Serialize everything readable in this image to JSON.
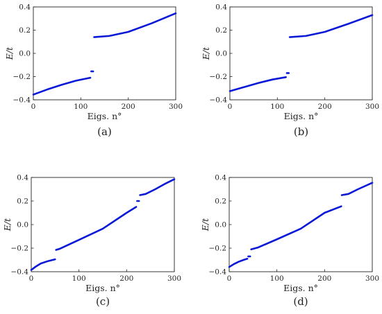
{
  "colors": {
    "series": "#0a18d8",
    "axis": "#222222"
  },
  "chart_data": [
    {
      "type": "scatter",
      "panel_label": "(a)",
      "xlabel": "Eigs. n°",
      "ylabel": "E/t",
      "xlim": [
        0,
        300
      ],
      "ylim": [
        -0.4,
        0.4
      ],
      "xticks": [
        "0",
        "100",
        "200",
        "300"
      ],
      "yticks": [
        "−0.4",
        "−0.2",
        "0.0",
        "0.2",
        "0.4"
      ],
      "series": [
        {
          "segments": [
            {
              "x": [
                0,
                30,
                60,
                90,
                120
              ],
              "y": [
                -0.355,
                -0.31,
                -0.27,
                -0.235,
                -0.21
              ]
            },
            {
              "x": [
                122,
                126
              ],
              "y": [
                -0.155,
                -0.155
              ]
            },
            {
              "x": [
                128,
                160,
                200,
                250,
                300
              ],
              "y": [
                0.14,
                0.15,
                0.185,
                0.26,
                0.345
              ]
            }
          ]
        }
      ]
    },
    {
      "type": "scatter",
      "panel_label": "(b)",
      "xlabel": "Eigs. n°",
      "ylabel": "E/t",
      "xlim": [
        0,
        300
      ],
      "ylim": [
        -0.4,
        0.4
      ],
      "xticks": [
        "0",
        "100",
        "200",
        "300"
      ],
      "yticks": [
        "−0.4",
        "−0.2",
        "0.0",
        "0.2",
        "0.4"
      ],
      "series": [
        {
          "segments": [
            {
              "x": [
                0,
                30,
                60,
                90,
                118
              ],
              "y": [
                -0.325,
                -0.29,
                -0.255,
                -0.225,
                -0.205
              ]
            },
            {
              "x": [
                120,
                124
              ],
              "y": [
                -0.17,
                -0.17
              ]
            },
            {
              "x": [
                126,
                160,
                200,
                250,
                300
              ],
              "y": [
                0.14,
                0.15,
                0.185,
                0.255,
                0.33
              ]
            }
          ]
        }
      ]
    },
    {
      "type": "scatter",
      "panel_label": "(c)",
      "xlabel": "Eigs. n°",
      "ylabel": "E/t",
      "xlim": [
        0,
        300
      ],
      "ylim": [
        -0.4,
        0.4
      ],
      "xticks": [
        "0",
        "100",
        "200",
        "300"
      ],
      "yticks": [
        "−0.4",
        "−0.2",
        "0.0",
        "0.2",
        "0.4"
      ],
      "series": [
        {
          "segments": [
            {
              "x": [
                0,
                10,
                20,
                35,
                50
              ],
              "y": [
                -0.385,
                -0.355,
                -0.33,
                -0.31,
                -0.295
              ]
            },
            {
              "x": [
                52,
                60,
                100,
                150,
                200,
                220
              ],
              "y": [
                -0.215,
                -0.205,
                -0.13,
                -0.035,
                0.1,
                0.15
              ]
            },
            {
              "x": [
                222,
                226
              ],
              "y": [
                0.2,
                0.2
              ]
            },
            {
              "x": [
                228,
                240,
                260,
                280,
                300
              ],
              "y": [
                0.25,
                0.26,
                0.3,
                0.345,
                0.385
              ]
            }
          ]
        }
      ]
    },
    {
      "type": "scatter",
      "panel_label": "(d)",
      "xlabel": "Eigs. n°",
      "ylabel": "E/t",
      "xlim": [
        0,
        300
      ],
      "ylim": [
        -0.4,
        0.4
      ],
      "xticks": [
        "0",
        "100",
        "200",
        "300"
      ],
      "yticks": [
        "−0.4",
        "−0.2",
        "0.0",
        "0.2",
        "0.4"
      ],
      "series": [
        {
          "segments": [
            {
              "x": [
                0,
                10,
                20,
                30,
                38
              ],
              "y": [
                -0.36,
                -0.335,
                -0.315,
                -0.3,
                -0.29
              ]
            },
            {
              "x": [
                40,
                44
              ],
              "y": [
                -0.27,
                -0.27
              ]
            },
            {
              "x": [
                46,
                60,
                100,
                150,
                200,
                235
              ],
              "y": [
                -0.21,
                -0.195,
                -0.125,
                -0.035,
                0.1,
                0.155
              ]
            },
            {
              "x": [
                236,
                250,
                270,
                300
              ],
              "y": [
                0.25,
                0.26,
                0.3,
                0.355
              ]
            }
          ]
        }
      ]
    }
  ]
}
